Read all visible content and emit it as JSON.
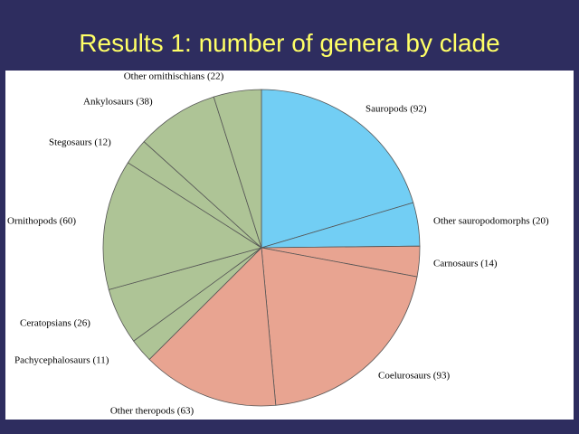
{
  "chart_data": {
    "type": "pie",
    "title": "Results 1: number of genera by clade",
    "categories": [
      "Sauropods (92)",
      "Other sauropodomorphs (20)",
      "Carnosaurs (14)",
      "Coelurosaurs (93)",
      "Other theropods (63)",
      "Pachycephalosaurs (11)",
      "Ceratopsians (26)",
      "Ornithopods (60)",
      "Stegosaurs (12)",
      "Ankylosaurs (38)",
      "Other ornithischians (22)"
    ],
    "values": [
      92,
      20,
      14,
      93,
      63,
      11,
      26,
      60,
      12,
      38,
      22
    ],
    "colors": [
      "#72cef4",
      "#72cef4",
      "#e8a491",
      "#e8a491",
      "#e8a491",
      "#aec496",
      "#aec496",
      "#aec496",
      "#aec496",
      "#aec496",
      "#aec496"
    ]
  }
}
